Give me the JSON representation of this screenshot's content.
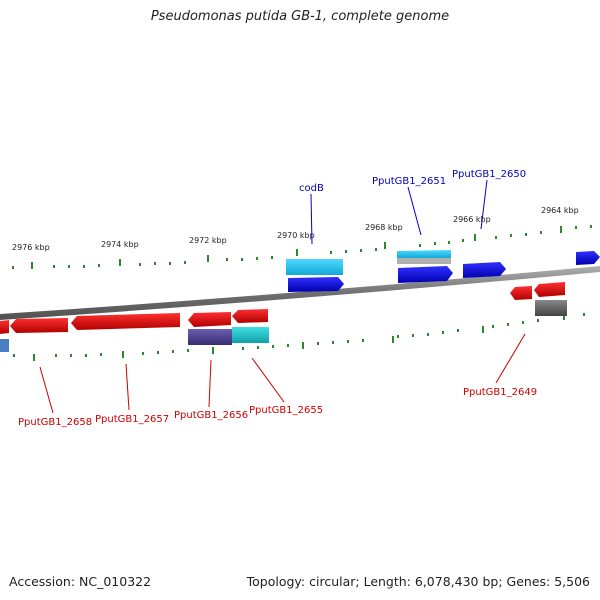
{
  "title": "Pseudomonas putida GB-1, complete genome",
  "footer": {
    "accession": "Accession: NC_010322",
    "summary": "Topology: circular; Length: 6,078,430 bp; Genes: 5,506"
  },
  "scale_labels": [
    "2976 kbp",
    "2974 kbp",
    "2972 kbp",
    "2970 kbp",
    "2968 kbp",
    "2966 kbp",
    "2964 kbp"
  ],
  "gene_labels": {
    "codB": "codB",
    "pputgb1_2651": "PputGB1_2651",
    "pputgb1_2650": "PputGB1_2650",
    "pputgb1_2649": "PputGB1_2649",
    "pputgb1_2658": "PputGB1_2658",
    "pputgb1_2657": "PputGB1_2657",
    "pputgb1_2656": "PputGB1_2656",
    "pputgb1_2655": "PputGB1_2655"
  },
  "colors": {
    "forward_strand": "#0000ee",
    "reverse_strand": "#ee0000",
    "ticks": "#2a8a2a",
    "backbone": "#808080",
    "cyan_feature": "#22c4ee",
    "teal_feature": "#1ec8c8",
    "purple_feature": "#4a3f8a",
    "grey_feature": "#666666"
  }
}
